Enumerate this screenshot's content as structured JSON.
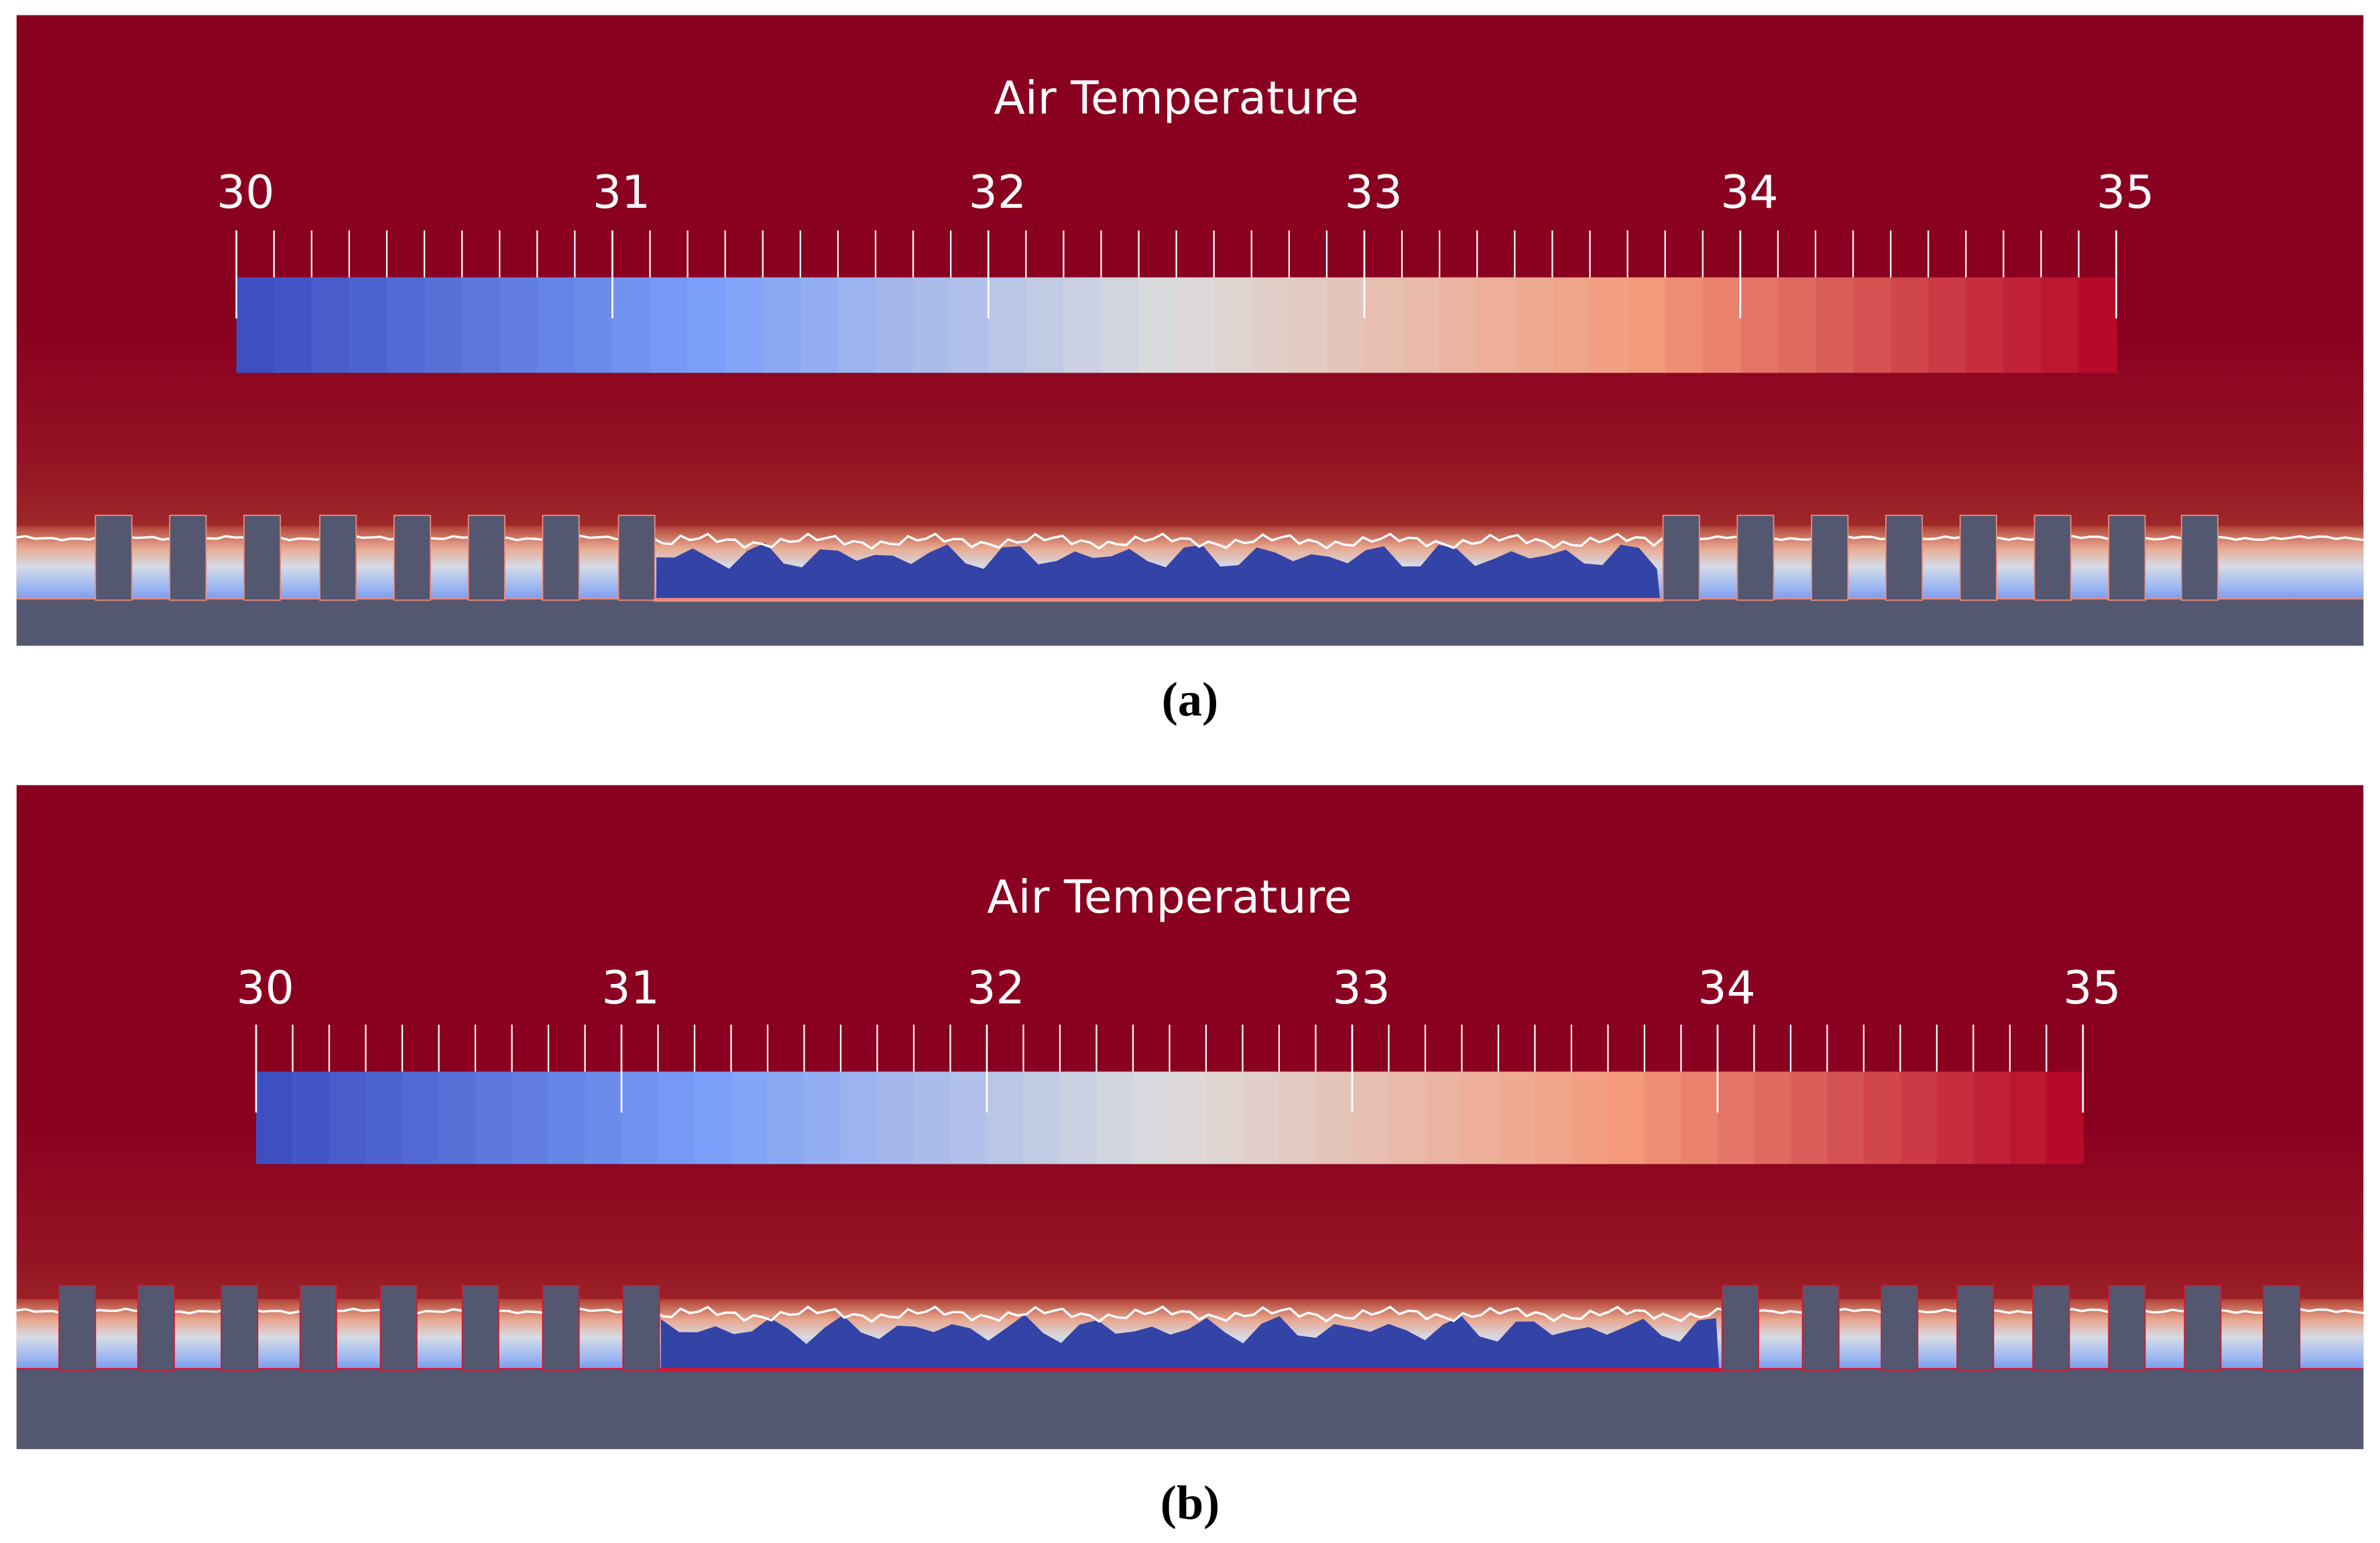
{
  "panels": [
    {
      "title": "Air Temperature",
      "colorbar": {
        "lim": [
          30,
          35
        ],
        "ticks": [
          30,
          31,
          32,
          33,
          34,
          35
        ]
      },
      "caption": "(a)"
    },
    {
      "title": "Air Temperature",
      "colorbar": {
        "lim": [
          30,
          35
        ],
        "ticks": [
          30,
          31,
          32,
          33,
          34,
          35
        ]
      },
      "caption": "(b)"
    }
  ]
}
